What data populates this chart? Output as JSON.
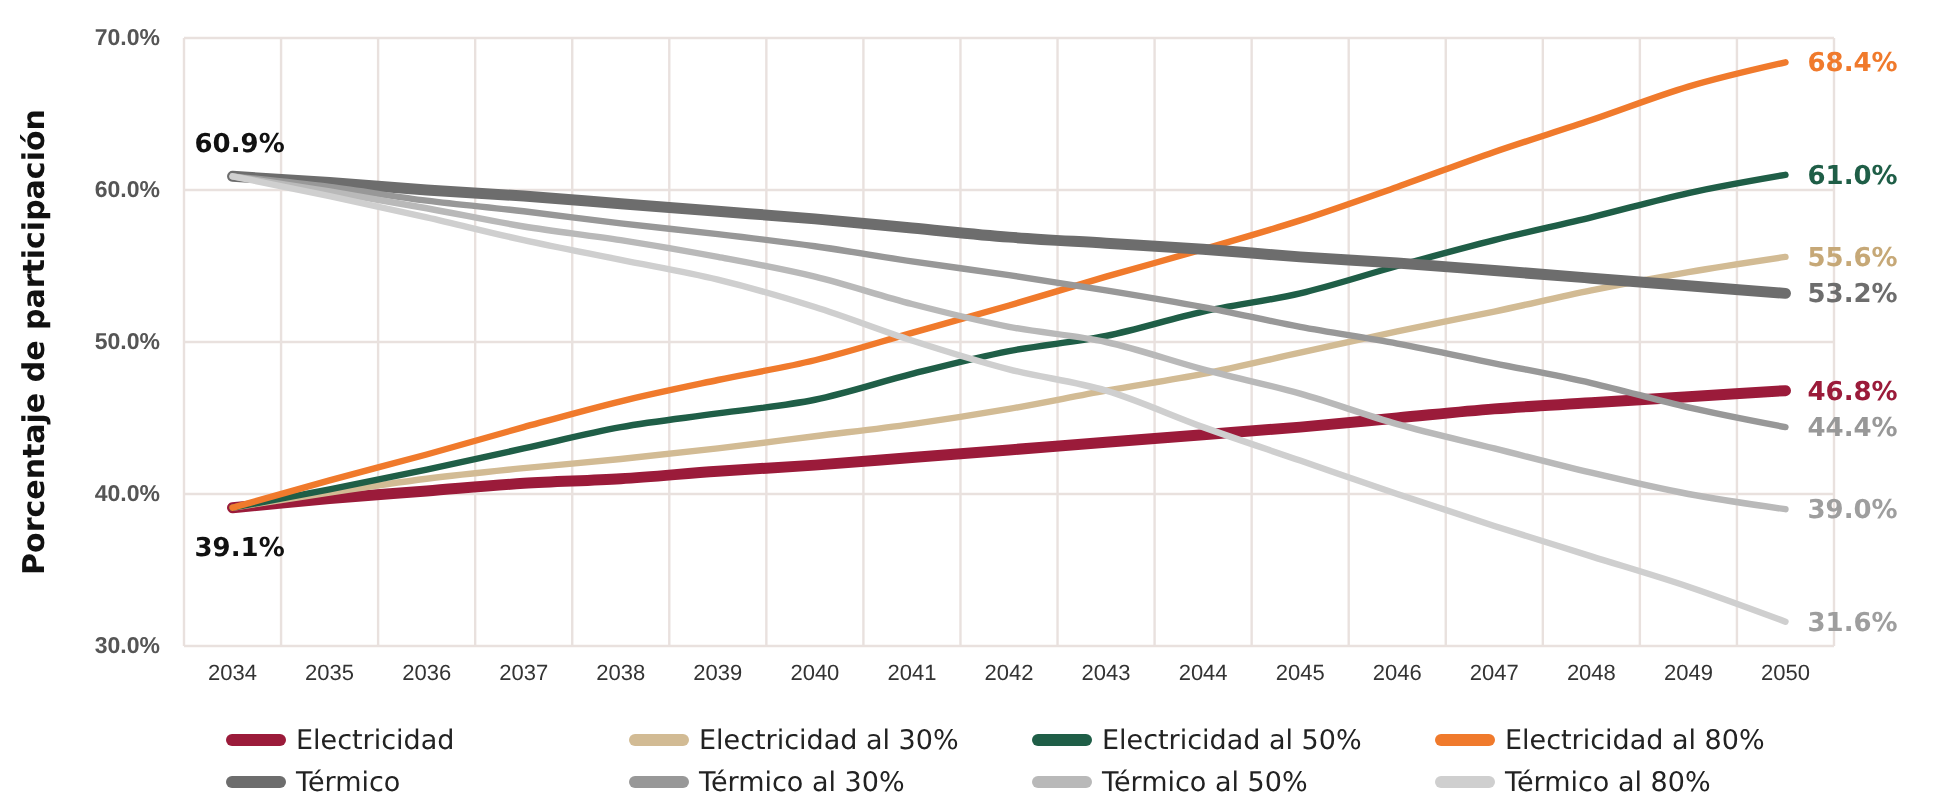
{
  "chart_data": {
    "type": "line",
    "ylabel": "Porcentaje de participación",
    "categories": [
      "2034",
      "2035",
      "2036",
      "2037",
      "2038",
      "2039",
      "2040",
      "2041",
      "2042",
      "2043",
      "2044",
      "2045",
      "2046",
      "2047",
      "2048",
      "2049",
      "2050"
    ],
    "ylim": [
      30,
      70
    ],
    "yticks": [
      {
        "value": 30,
        "label": "30.0%"
      },
      {
        "value": 40,
        "label": "40.0%"
      },
      {
        "value": 50,
        "label": "50.0%"
      },
      {
        "value": 60,
        "label": "60.0%"
      },
      {
        "value": 70,
        "label": "70.0%"
      }
    ],
    "grid": true,
    "legend": "bottom",
    "series": [
      {
        "name": "Electricidad",
        "color": "#9b1b3a",
        "values": [
          39.1,
          39.7,
          40.2,
          40.7,
          41.0,
          41.5,
          41.9,
          42.4,
          42.9,
          43.4,
          43.9,
          44.4,
          45.0,
          45.6,
          46.0,
          46.4,
          46.8
        ],
        "value_labels": [
          null,
          null,
          null,
          null,
          null,
          null,
          null,
          null,
          null,
          null,
          null,
          null,
          null,
          null,
          null,
          null,
          "46.8%"
        ]
      },
      {
        "name": "Electricidad al 30%",
        "color": "#d2bb94",
        "values": [
          39.1,
          40.1,
          41.0,
          41.7,
          42.3,
          43.0,
          43.8,
          44.6,
          45.6,
          46.8,
          47.9,
          49.3,
          50.7,
          52.0,
          53.4,
          54.6,
          55.6
        ],
        "value_labels": [
          null,
          null,
          null,
          null,
          null,
          null,
          null,
          null,
          null,
          null,
          null,
          null,
          null,
          null,
          null,
          null,
          "55.6%"
        ]
      },
      {
        "name": "Electricidad al 50%",
        "color": "#1f5e47",
        "values": [
          39.1,
          40.3,
          41.6,
          43.0,
          44.4,
          45.3,
          46.2,
          47.9,
          49.4,
          50.4,
          52.0,
          53.2,
          55.0,
          56.7,
          58.2,
          59.8,
          61.0
        ],
        "value_labels": [
          null,
          null,
          null,
          null,
          null,
          null,
          null,
          null,
          null,
          null,
          null,
          null,
          null,
          null,
          null,
          null,
          "61.0%"
        ]
      },
      {
        "name": "Electricidad al 80%",
        "color": "#f07a2c",
        "values": [
          39.1,
          40.9,
          42.6,
          44.4,
          46.1,
          47.5,
          48.8,
          50.6,
          52.4,
          54.3,
          56.1,
          58.0,
          60.2,
          62.5,
          64.6,
          66.8,
          68.4
        ],
        "value_labels": [
          null,
          null,
          null,
          null,
          null,
          null,
          null,
          null,
          null,
          null,
          null,
          null,
          null,
          null,
          null,
          null,
          "68.4%"
        ]
      },
      {
        "name": "Térmico",
        "color": "#6d6d6d",
        "values": [
          60.9,
          60.5,
          60.0,
          59.6,
          59.1,
          58.6,
          58.1,
          57.5,
          56.9,
          56.5,
          56.1,
          55.6,
          55.2,
          54.7,
          54.2,
          53.7,
          53.2
        ],
        "value_labels": [
          null,
          null,
          null,
          null,
          null,
          null,
          null,
          null,
          null,
          null,
          null,
          null,
          null,
          null,
          null,
          null,
          "53.2%"
        ]
      },
      {
        "name": "Térmico al 30%",
        "color": "#989898",
        "values": [
          60.9,
          60.2,
          59.3,
          58.6,
          57.8,
          57.1,
          56.3,
          55.3,
          54.4,
          53.4,
          52.3,
          51.0,
          49.9,
          48.6,
          47.3,
          45.7,
          44.4
        ],
        "value_labels": [
          null,
          null,
          null,
          null,
          null,
          null,
          null,
          null,
          null,
          null,
          null,
          null,
          null,
          null,
          null,
          null,
          "44.4%"
        ]
      },
      {
        "name": "Térmico al 50%",
        "color": "#b9b9b9",
        "values": [
          60.9,
          59.9,
          58.8,
          57.6,
          56.7,
          55.6,
          54.3,
          52.5,
          51.0,
          50.0,
          48.2,
          46.6,
          44.6,
          43.0,
          41.4,
          40.0,
          39.0
        ],
        "value_labels": [
          null,
          null,
          null,
          null,
          null,
          null,
          null,
          null,
          null,
          null,
          null,
          null,
          null,
          null,
          null,
          null,
          "39.0%"
        ]
      },
      {
        "name": "Térmico al 80%",
        "color": "#cfcfcf",
        "values": [
          60.9,
          59.6,
          58.2,
          56.7,
          55.4,
          54.1,
          52.3,
          50.1,
          48.2,
          46.8,
          44.4,
          42.2,
          40.0,
          37.9,
          35.9,
          33.9,
          31.6
        ],
        "value_labels": [
          null,
          null,
          null,
          null,
          null,
          null,
          null,
          null,
          null,
          null,
          null,
          null,
          null,
          null,
          null,
          null,
          "31.6%"
        ]
      }
    ],
    "annotations": [
      {
        "text": "60.9%",
        "x": "2034",
        "y": 60.9
      },
      {
        "text": "39.1%",
        "x": "2034",
        "y": 39.1
      }
    ]
  }
}
